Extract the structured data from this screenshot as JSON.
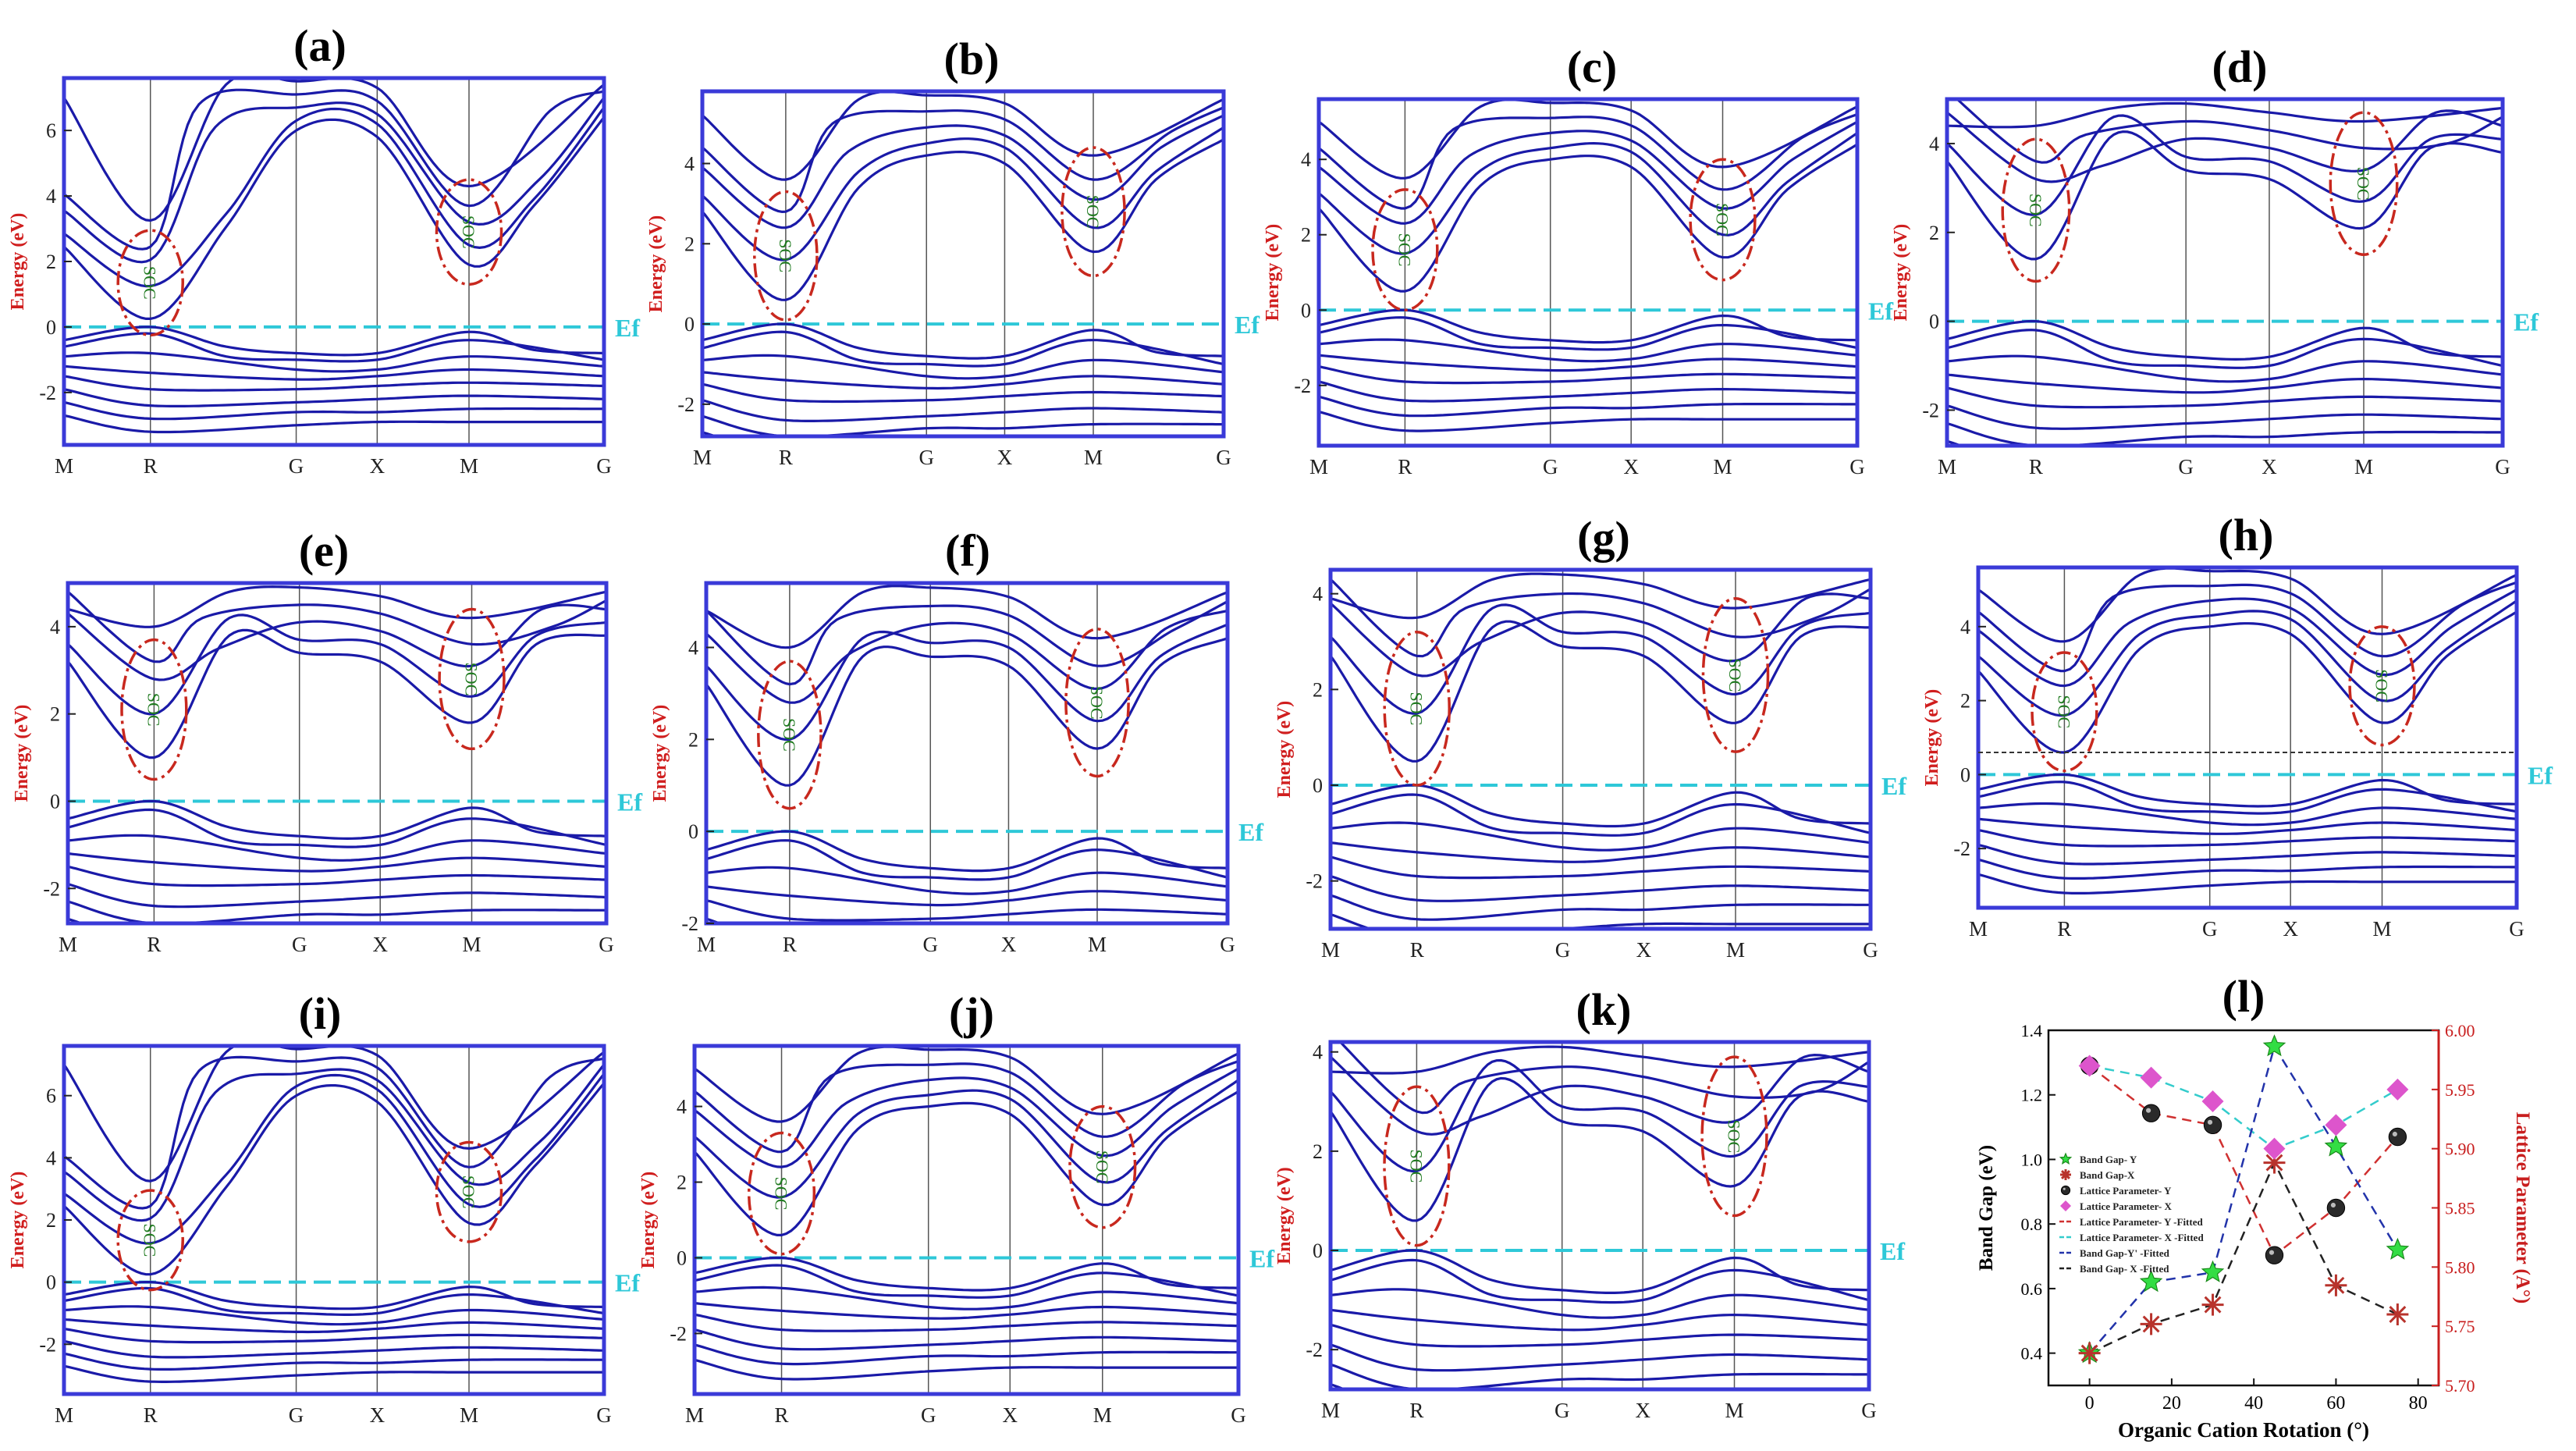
{
  "figure": {
    "energy_axis_label": "Energy (eV)",
    "fermi_label": "Ef",
    "soc_label": "SOC",
    "kpath_labels": [
      "M",
      "R",
      "G",
      "X",
      "M",
      "G"
    ],
    "kpath_positions": [
      0,
      0.16,
      0.43,
      0.58,
      0.75,
      1.0
    ],
    "colors": {
      "band": "#1a1aa8",
      "frame": "#3a3ad8",
      "fermi": "#2ec8d8",
      "soc_ellipse": "#c8281e",
      "soc_text": "#1f7a1f",
      "axis_label": "#d01e1e",
      "panel_title": "#000000"
    }
  },
  "panels": [
    {
      "id": "a",
      "title": "(a)",
      "yticks": [
        -2,
        0,
        2,
        4,
        6
      ],
      "ymin": -3.6,
      "ymax": 7.6,
      "cbm_R": 0.25,
      "cbm_M": 1.9,
      "soc_texts": [
        "SOC",
        "SOC"
      ]
    },
    {
      "id": "b",
      "title": "(b)",
      "yticks": [
        -2,
        0,
        2,
        4
      ],
      "ymin": -2.8,
      "ymax": 5.8,
      "cbm_R": 0.6,
      "cbm_M": 1.8,
      "soc_texts": [
        "SOC",
        "SOC"
      ]
    },
    {
      "id": "c",
      "title": "(c)",
      "yticks": [
        -2,
        0,
        2,
        4
      ],
      "ymin": -3.6,
      "ymax": 5.6,
      "cbm_R": 0.5,
      "cbm_M": 1.4,
      "soc_texts": [
        "SOC",
        "SOC"
      ]
    },
    {
      "id": "d",
      "title": "(d)",
      "yticks": [
        -2,
        0,
        2,
        4
      ],
      "ymin": -2.8,
      "ymax": 5.0,
      "cbm_R": 1.4,
      "cbm_M": 2.1,
      "soc_texts": [
        "SOC",
        "SOC"
      ]
    },
    {
      "id": "e",
      "title": "(e)",
      "yticks": [
        -2,
        0,
        2,
        4
      ],
      "ymin": -2.8,
      "ymax": 5.0,
      "cbm_R": 1.0,
      "cbm_M": 1.8,
      "soc_texts": [
        "SOC",
        "SOC"
      ]
    },
    {
      "id": "f",
      "title": "(f)",
      "yticks": [
        -2,
        0,
        2,
        4
      ],
      "ymin": -2.0,
      "ymax": 5.4,
      "cbm_R": 1.0,
      "cbm_M": 1.8,
      "soc_texts": [
        "SOC",
        "SOC"
      ]
    },
    {
      "id": "g",
      "title": "(g)",
      "yticks": [
        -2,
        0,
        2,
        4
      ],
      "ymin": -3.0,
      "ymax": 4.5,
      "cbm_R": 0.5,
      "cbm_M": 1.3,
      "soc_texts": [
        "SOC",
        "SOC"
      ]
    },
    {
      "id": "h",
      "title": "(h)",
      "yticks": [
        -2,
        0,
        2,
        4
      ],
      "ymin": -3.6,
      "ymax": 5.6,
      "cbm_R": 0.6,
      "cbm_M": 1.4,
      "soc_texts": [
        "SOC",
        "SOC"
      ]
    },
    {
      "id": "i",
      "title": "(i)",
      "yticks": [
        -2,
        0,
        2,
        4,
        6
      ],
      "ymin": -3.6,
      "ymax": 7.6,
      "cbm_R": 0.25,
      "cbm_M": 1.9,
      "soc_texts": [
        "SOC",
        "SOC"
      ]
    },
    {
      "id": "j",
      "title": "(j)",
      "yticks": [
        -2,
        0,
        2,
        4
      ],
      "ymin": -3.6,
      "ymax": 5.6,
      "cbm_R": 0.6,
      "cbm_M": 1.4,
      "soc_texts": [
        "SOC",
        "SOC"
      ]
    },
    {
      "id": "k",
      "title": "(k)",
      "yticks": [
        -2,
        0,
        2,
        4
      ],
      "ymin": -2.8,
      "ymax": 4.2,
      "cbm_R": 0.6,
      "cbm_M": 1.3,
      "soc_texts": [
        "SOC",
        "SOC"
      ]
    }
  ],
  "chart_data": {
    "type": "scatter",
    "title": "(l)",
    "xlabel": "Organic Cation Rotation (°)",
    "ylabel": "Band Gap (eV)",
    "y2label": "Lattice Parameter (A°)",
    "xlim": [
      -10,
      85
    ],
    "ylim": [
      0.3,
      1.4
    ],
    "y2lim": [
      5.7,
      6.0
    ],
    "xticks": [
      0,
      20,
      40,
      60,
      80
    ],
    "yticks": [
      0.4,
      0.6,
      0.8,
      1.0,
      1.2,
      1.4
    ],
    "y2ticks": [
      5.7,
      5.75,
      5.8,
      5.85,
      5.9,
      5.95,
      6.0
    ],
    "series": [
      {
        "name": "Band Gap- Y",
        "axis": "left",
        "marker": "star",
        "color": "#33dd44",
        "x": [
          0,
          15,
          30,
          45,
          60,
          75
        ],
        "values": [
          0.4,
          0.62,
          0.65,
          1.35,
          1.04,
          0.72
        ]
      },
      {
        "name": "Band Gap-X",
        "axis": "left",
        "marker": "asterisk",
        "color": "#b8332c",
        "x": [
          0,
          15,
          30,
          45,
          60,
          75
        ],
        "values": [
          0.4,
          0.49,
          0.55,
          0.99,
          0.61,
          0.52
        ]
      },
      {
        "name": "Lattice Parameter- Y",
        "axis": "right",
        "marker": "ball",
        "color": "#2a2a2a",
        "x": [
          0,
          15,
          30,
          45,
          60,
          75
        ],
        "values": [
          5.97,
          5.93,
          5.92,
          5.81,
          5.85,
          5.91
        ]
      },
      {
        "name": "Lattice Parameter- X",
        "axis": "right",
        "marker": "diamond",
        "color": "#dd55cc",
        "x": [
          0,
          15,
          30,
          45,
          60,
          75
        ],
        "values": [
          5.97,
          5.96,
          5.94,
          5.9,
          5.92,
          5.95
        ]
      }
    ],
    "fits": [
      {
        "name": "Lattice Parameter- Y -Fitted",
        "color": "#d03030",
        "of": "Lattice Parameter- Y",
        "axis": "right"
      },
      {
        "name": "Lattice Parameter- X -Fitted",
        "color": "#33cccc",
        "of": "Lattice Parameter- X",
        "axis": "right"
      },
      {
        "name": "Band Gap-Y' -Fitted",
        "color": "#2233aa",
        "of": "Band Gap- Y",
        "axis": "left"
      },
      {
        "name": "Band Gap- X -Fitted",
        "color": "#222222",
        "of": "Band Gap-X",
        "axis": "left"
      }
    ],
    "legend": [
      "Band Gap- Y",
      "Band Gap-X",
      "Lattice Parameter- Y",
      "Lattice Parameter- X",
      "Lattice Parameter- Y -Fitted",
      "Lattice Parameter- X -Fitted",
      "Band Gap-Y' -Fitted",
      "Band Gap- X -Fitted"
    ],
    "legend_position": "left"
  }
}
